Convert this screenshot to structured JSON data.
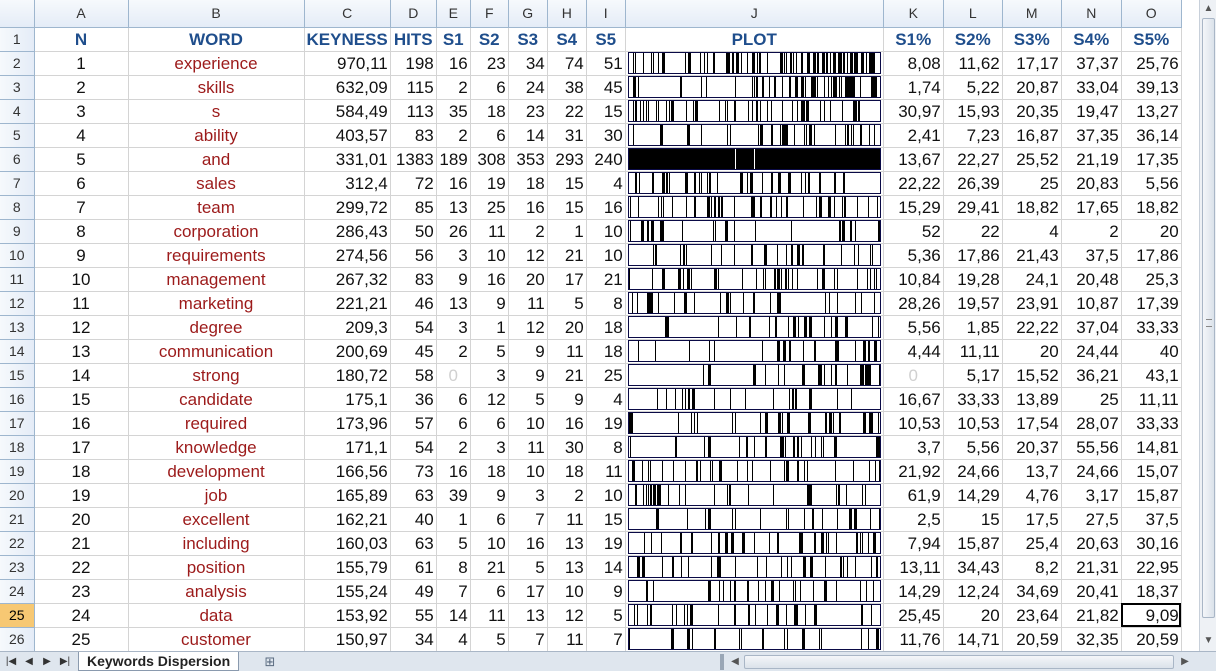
{
  "workbook": {
    "columns": [
      "A",
      "B",
      "C",
      "D",
      "E",
      "F",
      "G",
      "H",
      "I",
      "J",
      "K",
      "L",
      "M",
      "N",
      "O"
    ],
    "header_row": [
      "N",
      "WORD",
      "KEYNESS",
      "HITS",
      "S1",
      "S2",
      "S3",
      "S4",
      "S5",
      "PLOT",
      "S1%",
      "S2%",
      "S3%",
      "S4%",
      "S5%"
    ],
    "active_row": "25",
    "rows": [
      {
        "n": "1",
        "word": "experience",
        "keyness": "970,11",
        "hits": "198",
        "s1": "16",
        "s2": "23",
        "s3": "34",
        "s4": "74",
        "s5": "51",
        "p1": "8,08",
        "p2": "11,62",
        "p3": "17,17",
        "p4": "37,37",
        "p5": "25,76",
        "density": [
          16,
          23,
          34,
          74,
          51
        ]
      },
      {
        "n": "2",
        "word": "skills",
        "keyness": "632,09",
        "hits": "115",
        "s1": "2",
        "s2": "6",
        "s3": "24",
        "s4": "38",
        "s5": "45",
        "p1": "1,74",
        "p2": "5,22",
        "p3": "20,87",
        "p4": "33,04",
        "p5": "39,13",
        "density": [
          2,
          6,
          24,
          38,
          45
        ]
      },
      {
        "n": "3",
        "word": "s",
        "keyness": "584,49",
        "hits": "113",
        "s1": "35",
        "s2": "18",
        "s3": "23",
        "s4": "22",
        "s5": "15",
        "p1": "30,97",
        "p2": "15,93",
        "p3": "20,35",
        "p4": "19,47",
        "p5": "13,27",
        "density": [
          35,
          18,
          23,
          22,
          15
        ]
      },
      {
        "n": "4",
        "word": "ability",
        "keyness": "403,57",
        "hits": "83",
        "s1": "2",
        "s2": "6",
        "s3": "14",
        "s4": "31",
        "s5": "30",
        "p1": "2,41",
        "p2": "7,23",
        "p3": "16,87",
        "p4": "37,35",
        "p5": "36,14",
        "density": [
          2,
          6,
          14,
          31,
          30
        ]
      },
      {
        "n": "5",
        "word": "and",
        "keyness": "331,01",
        "hits": "1383",
        "s1": "189",
        "s2": "308",
        "s3": "353",
        "s4": "293",
        "s5": "240",
        "p1": "13,67",
        "p2": "22,27",
        "p3": "25,52",
        "p4": "21,19",
        "p5": "17,35",
        "density": [
          189,
          308,
          353,
          293,
          240
        ]
      },
      {
        "n": "6",
        "word": "sales",
        "keyness": "312,4",
        "hits": "72",
        "s1": "16",
        "s2": "19",
        "s3": "18",
        "s4": "15",
        "s5": "4",
        "p1": "22,22",
        "p2": "26,39",
        "p3": "25",
        "p4": "20,83",
        "p5": "5,56",
        "density": [
          16,
          19,
          18,
          15,
          4
        ]
      },
      {
        "n": "7",
        "word": "team",
        "keyness": "299,72",
        "hits": "85",
        "s1": "13",
        "s2": "25",
        "s3": "16",
        "s4": "15",
        "s5": "16",
        "p1": "15,29",
        "p2": "29,41",
        "p3": "18,82",
        "p4": "17,65",
        "p5": "18,82",
        "density": [
          13,
          25,
          16,
          15,
          16
        ]
      },
      {
        "n": "8",
        "word": "corporation",
        "keyness": "286,43",
        "hits": "50",
        "s1": "26",
        "s2": "11",
        "s3": "2",
        "s4": "1",
        "s5": "10",
        "p1": "52",
        "p2": "22",
        "p3": "4",
        "p4": "2",
        "p5": "20",
        "density": [
          26,
          11,
          2,
          1,
          10
        ]
      },
      {
        "n": "9",
        "word": "requirements",
        "keyness": "274,56",
        "hits": "56",
        "s1": "3",
        "s2": "10",
        "s3": "12",
        "s4": "21",
        "s5": "10",
        "p1": "5,36",
        "p2": "17,86",
        "p3": "21,43",
        "p4": "37,5",
        "p5": "17,86",
        "density": [
          3,
          10,
          12,
          21,
          10
        ]
      },
      {
        "n": "10",
        "word": "management",
        "keyness": "267,32",
        "hits": "83",
        "s1": "9",
        "s2": "16",
        "s3": "20",
        "s4": "17",
        "s5": "21",
        "p1": "10,84",
        "p2": "19,28",
        "p3": "24,1",
        "p4": "20,48",
        "p5": "25,3",
        "density": [
          9,
          16,
          20,
          17,
          21
        ]
      },
      {
        "n": "11",
        "word": "marketing",
        "keyness": "221,21",
        "hits": "46",
        "s1": "13",
        "s2": "9",
        "s3": "11",
        "s4": "5",
        "s5": "8",
        "p1": "28,26",
        "p2": "19,57",
        "p3": "23,91",
        "p4": "10,87",
        "p5": "17,39",
        "density": [
          13,
          9,
          11,
          5,
          8
        ]
      },
      {
        "n": "12",
        "word": "degree",
        "keyness": "209,3",
        "hits": "54",
        "s1": "3",
        "s2": "1",
        "s3": "12",
        "s4": "20",
        "s5": "18",
        "p1": "5,56",
        "p2": "1,85",
        "p3": "22,22",
        "p4": "37,04",
        "p5": "33,33",
        "density": [
          3,
          1,
          12,
          20,
          18
        ]
      },
      {
        "n": "13",
        "word": "communication",
        "keyness": "200,69",
        "hits": "45",
        "s1": "2",
        "s2": "5",
        "s3": "9",
        "s4": "11",
        "s5": "18",
        "p1": "4,44",
        "p2": "11,11",
        "p3": "20",
        "p4": "24,44",
        "p5": "40",
        "density": [
          2,
          5,
          9,
          11,
          18
        ]
      },
      {
        "n": "14",
        "word": "strong",
        "keyness": "180,72",
        "hits": "58",
        "s1": "0",
        "s2": "3",
        "s3": "9",
        "s4": "21",
        "s5": "25",
        "p1": "0",
        "p2": "5,17",
        "p3": "15,52",
        "p4": "36,21",
        "p5": "43,1",
        "density": [
          0,
          3,
          9,
          21,
          25
        ]
      },
      {
        "n": "15",
        "word": "candidate",
        "keyness": "175,1",
        "hits": "36",
        "s1": "6",
        "s2": "12",
        "s3": "5",
        "s4": "9",
        "s5": "4",
        "p1": "16,67",
        "p2": "33,33",
        "p3": "13,89",
        "p4": "25",
        "p5": "11,11",
        "density": [
          6,
          12,
          5,
          9,
          4
        ]
      },
      {
        "n": "16",
        "word": "required",
        "keyness": "173,96",
        "hits": "57",
        "s1": "6",
        "s2": "6",
        "s3": "10",
        "s4": "16",
        "s5": "19",
        "p1": "10,53",
        "p2": "10,53",
        "p3": "17,54",
        "p4": "28,07",
        "p5": "33,33",
        "density": [
          6,
          6,
          10,
          16,
          19
        ]
      },
      {
        "n": "17",
        "word": "knowledge",
        "keyness": "171,1",
        "hits": "54",
        "s1": "2",
        "s2": "3",
        "s3": "11",
        "s4": "30",
        "s5": "8",
        "p1": "3,7",
        "p2": "5,56",
        "p3": "20,37",
        "p4": "55,56",
        "p5": "14,81",
        "density": [
          2,
          3,
          11,
          30,
          8
        ]
      },
      {
        "n": "18",
        "word": "development",
        "keyness": "166,56",
        "hits": "73",
        "s1": "16",
        "s2": "18",
        "s3": "10",
        "s4": "18",
        "s5": "11",
        "p1": "21,92",
        "p2": "24,66",
        "p3": "13,7",
        "p4": "24,66",
        "p5": "15,07",
        "density": [
          16,
          18,
          10,
          18,
          11
        ]
      },
      {
        "n": "19",
        "word": "job",
        "keyness": "165,89",
        "hits": "63",
        "s1": "39",
        "s2": "9",
        "s3": "3",
        "s4": "2",
        "s5": "10",
        "p1": "61,9",
        "p2": "14,29",
        "p3": "4,76",
        "p4": "3,17",
        "p5": "15,87",
        "density": [
          39,
          9,
          3,
          2,
          10
        ]
      },
      {
        "n": "20",
        "word": "excellent",
        "keyness": "162,21",
        "hits": "40",
        "s1": "1",
        "s2": "6",
        "s3": "7",
        "s4": "11",
        "s5": "15",
        "p1": "2,5",
        "p2": "15",
        "p3": "17,5",
        "p4": "27,5",
        "p5": "37,5",
        "density": [
          1,
          6,
          7,
          11,
          15
        ]
      },
      {
        "n": "21",
        "word": "including",
        "keyness": "160,03",
        "hits": "63",
        "s1": "5",
        "s2": "10",
        "s3": "16",
        "s4": "13",
        "s5": "19",
        "p1": "7,94",
        "p2": "15,87",
        "p3": "25,4",
        "p4": "20,63",
        "p5": "30,16",
        "density": [
          5,
          10,
          16,
          13,
          19
        ]
      },
      {
        "n": "22",
        "word": "position",
        "keyness": "155,79",
        "hits": "61",
        "s1": "8",
        "s2": "21",
        "s3": "5",
        "s4": "13",
        "s5": "14",
        "p1": "13,11",
        "p2": "34,43",
        "p3": "8,2",
        "p4": "21,31",
        "p5": "22,95",
        "density": [
          8,
          21,
          5,
          13,
          14
        ]
      },
      {
        "n": "23",
        "word": "analysis",
        "keyness": "155,24",
        "hits": "49",
        "s1": "7",
        "s2": "6",
        "s3": "17",
        "s4": "10",
        "s5": "9",
        "p1": "14,29",
        "p2": "12,24",
        "p3": "34,69",
        "p4": "20,41",
        "p5": "18,37",
        "density": [
          7,
          6,
          17,
          10,
          9
        ]
      },
      {
        "n": "24",
        "word": "data",
        "keyness": "153,92",
        "hits": "55",
        "s1": "14",
        "s2": "11",
        "s3": "13",
        "s4": "12",
        "s5": "5",
        "p1": "25,45",
        "p2": "20",
        "p3": "23,64",
        "p4": "21,82",
        "p5": "9,09",
        "density": [
          14,
          11,
          13,
          12,
          5
        ]
      },
      {
        "n": "25",
        "word": "customer",
        "keyness": "150,97",
        "hits": "34",
        "s1": "4",
        "s2": "5",
        "s3": "7",
        "s4": "11",
        "s5": "7",
        "p1": "11,76",
        "p2": "14,71",
        "p3": "20,59",
        "p4": "32,35",
        "p5": "20,59",
        "density": [
          4,
          5,
          7,
          11,
          7
        ]
      }
    ]
  },
  "tabs": {
    "active_sheet": "Keywords Dispersion"
  },
  "icons": {
    "first": "first-sheet-icon",
    "prev": "prev-sheet-icon",
    "next": "next-sheet-icon",
    "last": "last-sheet-icon",
    "new_sheet": "insert-sheet-icon",
    "scroll_up": "scroll-up-icon",
    "scroll_down": "scroll-down-icon",
    "scroll_left": "scroll-left-icon",
    "scroll_right": "scroll-right-icon"
  },
  "colors": {
    "header_text": "#1f4e8c",
    "word_text": "#9c1a1a",
    "active_row_header": "#f7c873"
  }
}
